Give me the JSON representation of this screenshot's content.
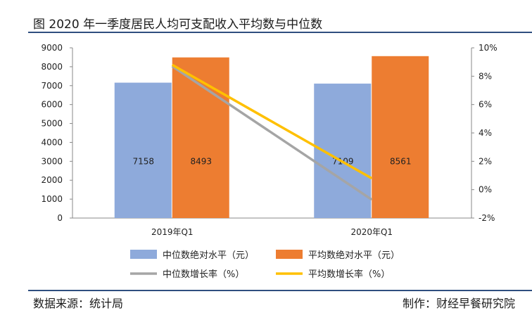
{
  "figure": {
    "title": "图 2020 年一季度居民人均可支配收入平均数与中位数",
    "source": "数据来源：统计局",
    "author": "制作：财经早餐研究院"
  },
  "colors": {
    "median_bar": "#8eaadb",
    "mean_bar": "#ed7d31",
    "median_line": "#a5a5a5",
    "mean_line": "#ffc000",
    "rule": "#2f4f7f"
  },
  "chart_data": {
    "type": "bar",
    "categories": [
      "2019年Q1",
      "2020年Q1"
    ],
    "series": [
      {
        "name": "中位数绝对水平（元）",
        "kind": "bar",
        "axis": "left",
        "values": [
          7158,
          7109
        ],
        "labels": [
          "7158",
          "7109"
        ]
      },
      {
        "name": "平均数绝对水平（元）",
        "kind": "bar",
        "axis": "left",
        "values": [
          8493,
          8561
        ],
        "labels": [
          "8493",
          "8561"
        ]
      },
      {
        "name": "中位数增长率（%）",
        "kind": "line",
        "axis": "right",
        "values": [
          8.7,
          -0.7
        ]
      },
      {
        "name": "平均数增长率（%）",
        "kind": "line",
        "axis": "right",
        "values": [
          8.8,
          0.8
        ]
      }
    ],
    "ylim": [
      0,
      9000
    ],
    "yticks": [
      "0",
      "1000",
      "2000",
      "3000",
      "4000",
      "5000",
      "6000",
      "7000",
      "8000",
      "9000"
    ],
    "y2lim": [
      -2,
      10
    ],
    "y2ticks": [
      "-2%",
      "0%",
      "2%",
      "4%",
      "6%",
      "8%",
      "10%"
    ],
    "grid": false,
    "legend_position": "bottom"
  }
}
